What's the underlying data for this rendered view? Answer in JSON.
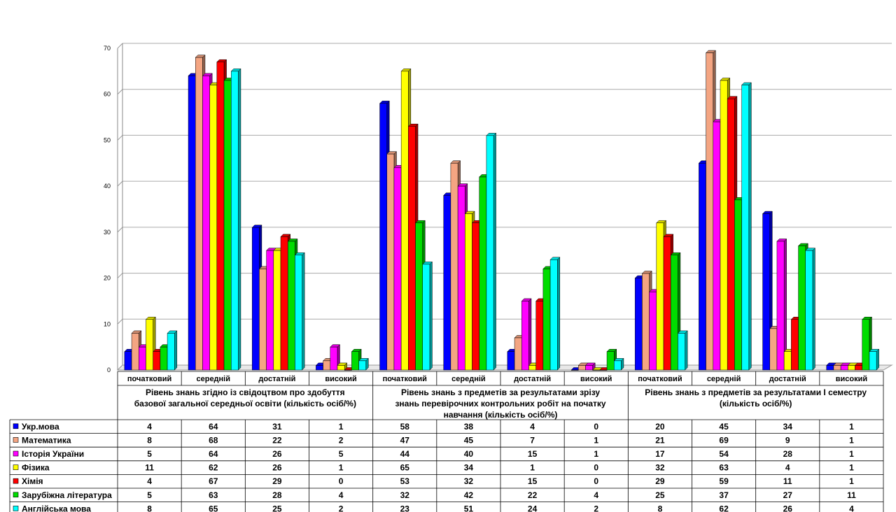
{
  "chart_data": {
    "type": "bar",
    "ylim": [
      0,
      70
    ],
    "yticks": [
      0,
      10,
      20,
      30,
      40,
      50,
      60,
      70
    ],
    "grid": true,
    "legend": "data-table",
    "groups": [
      {
        "title_lines": [
          "Рівень знань згідно із свідоцтвом про здобуття",
          "базової загальної середньої освіти (кількість осіб/%)"
        ]
      },
      {
        "title_lines": [
          "Рівень знань з предметів за результатами зрізу",
          "знань перевірочних контрольних робіт на початку",
          "навчання (кількість осіб/%)"
        ]
      },
      {
        "title_lines": [
          "Рівень знань з предметів за результатами І семестру",
          "(кількість осіб/%)"
        ]
      }
    ],
    "categories": [
      "початковий",
      "середній",
      "достатній",
      "високий",
      "початковий",
      "середній",
      "достатній",
      "високий",
      "початковий",
      "середній",
      "достатній",
      "високий"
    ],
    "series": [
      {
        "name": "Укр.мова",
        "color": "#0000ff",
        "values": [
          4,
          64,
          31,
          1,
          58,
          38,
          4,
          0,
          20,
          45,
          34,
          1
        ]
      },
      {
        "name": "Математика",
        "color": "#f4a582",
        "values": [
          8,
          68,
          22,
          2,
          47,
          45,
          7,
          1,
          21,
          69,
          9,
          1
        ]
      },
      {
        "name": "Історія України",
        "color": "#ff00ff",
        "values": [
          5,
          64,
          26,
          5,
          44,
          40,
          15,
          1,
          17,
          54,
          28,
          1
        ]
      },
      {
        "name": "Фізика",
        "color": "#ffff00",
        "values": [
          11,
          62,
          26,
          1,
          65,
          34,
          1,
          0,
          32,
          63,
          4,
          1
        ]
      },
      {
        "name": "Хімія",
        "color": "#ff0000",
        "values": [
          4,
          67,
          29,
          0,
          53,
          32,
          15,
          0,
          29,
          59,
          11,
          1
        ]
      },
      {
        "name": "Зарубіжна література",
        "color": "#00dd00",
        "values": [
          5,
          63,
          28,
          4,
          32,
          42,
          22,
          4,
          25,
          37,
          27,
          11
        ]
      },
      {
        "name": "Англійська мова",
        "color": "#00ffff",
        "values": [
          8,
          65,
          25,
          2,
          23,
          51,
          24,
          2,
          8,
          62,
          26,
          4
        ]
      }
    ]
  }
}
